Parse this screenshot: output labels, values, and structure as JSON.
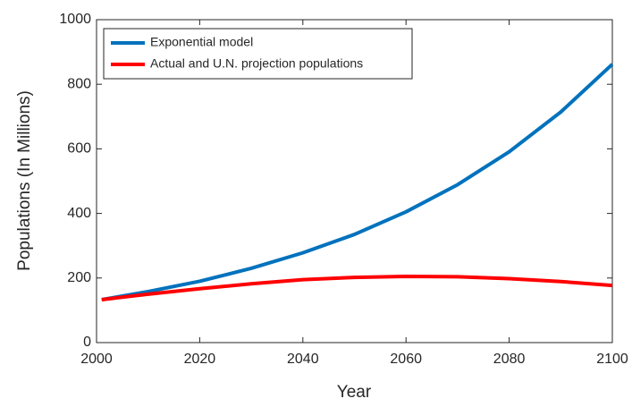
{
  "chart_data": {
    "type": "line",
    "xlabel": "Year",
    "ylabel": "Populations (In Millions)",
    "x": [
      2001,
      2010,
      2020,
      2030,
      2040,
      2050,
      2060,
      2070,
      2080,
      2090,
      2100
    ],
    "series": [
      {
        "name": "Exponential model",
        "color": "#0072bd",
        "values": [
          133,
          158,
          190,
          230,
          278,
          335,
          405,
          489,
          591,
          714,
          862
        ]
      },
      {
        "name": "Actual and U.N. projection populations",
        "color": "#ff0000",
        "values": [
          133,
          150,
          167,
          182,
          195,
          202,
          205,
          204,
          198,
          189,
          177
        ]
      }
    ],
    "xlim": [
      2000,
      2100
    ],
    "xticks": [
      2000,
      2020,
      2040,
      2060,
      2080,
      2100
    ],
    "ylim": [
      0,
      1000
    ],
    "yticks": [
      0,
      200,
      400,
      600,
      800,
      1000
    ],
    "grid": false,
    "legend": "upper left"
  }
}
